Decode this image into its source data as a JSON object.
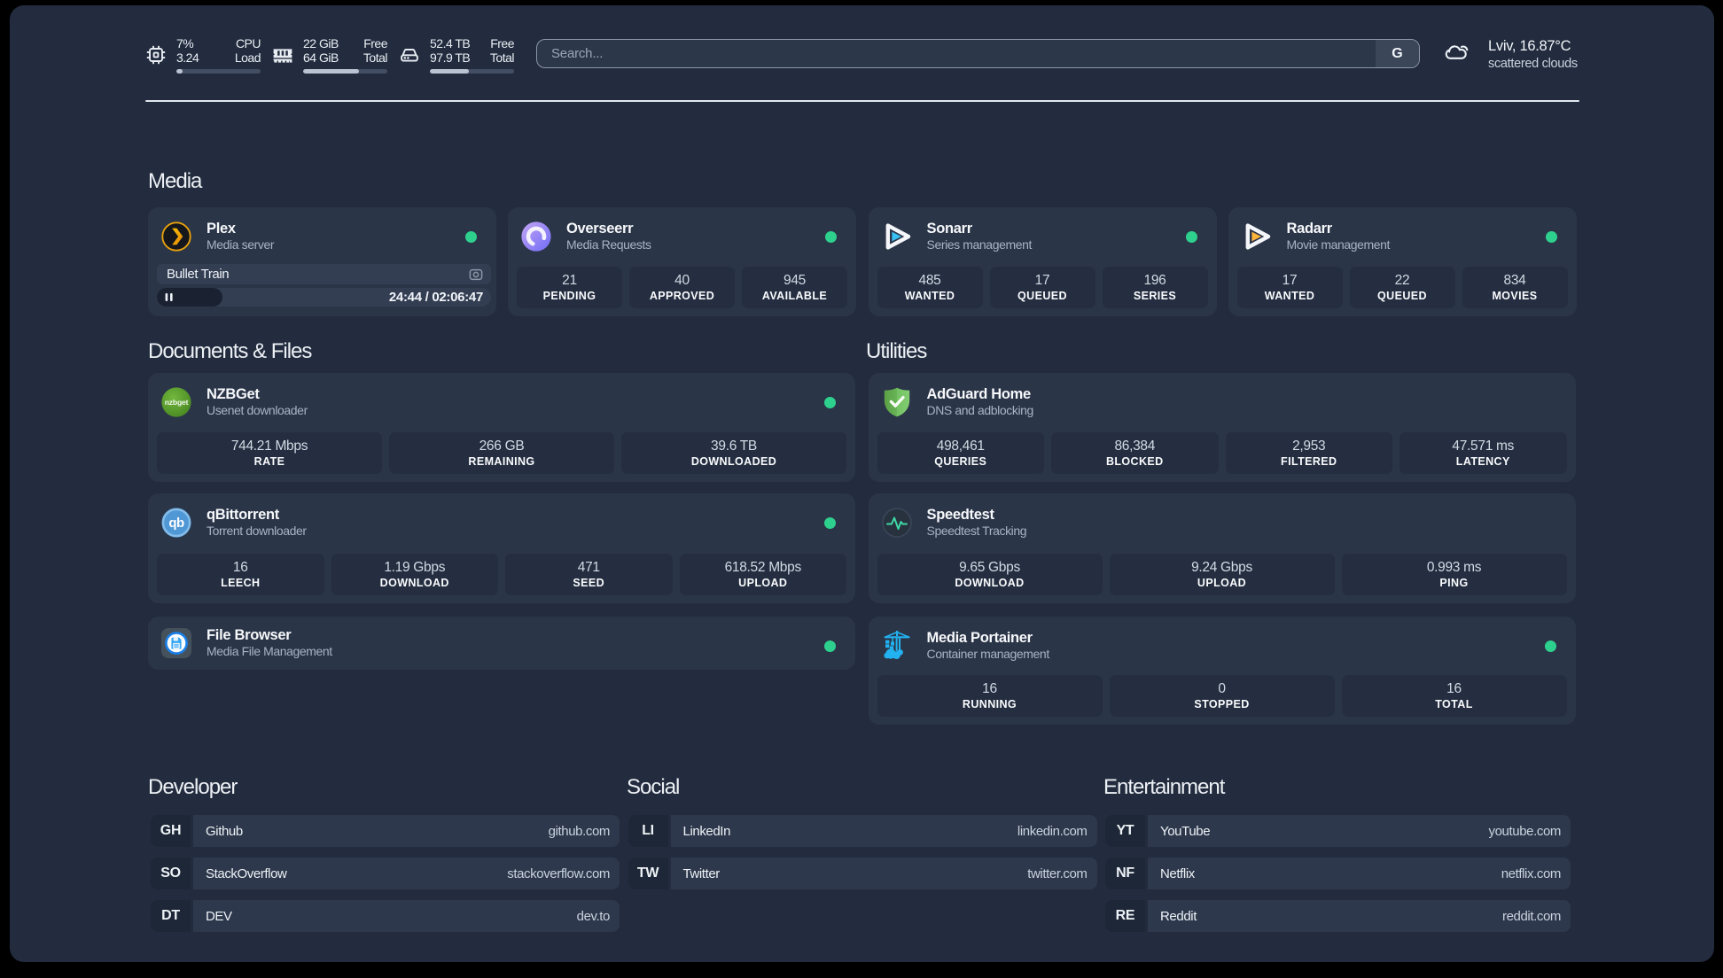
{
  "app": {
    "background": "#000000",
    "panel_bg": "#222c3e",
    "card_bg": "#2b3548",
    "tile_bg": "#242e40",
    "status_green": "#2fd593"
  },
  "header": {
    "resources": [
      {
        "icon": "cpu-icon",
        "rows": [
          {
            "value": "7%",
            "label": "CPU"
          },
          {
            "value": "3.24",
            "label": "Load"
          }
        ],
        "percent": 7
      },
      {
        "icon": "memory-icon",
        "rows": [
          {
            "value": "22 GiB",
            "label": "Free"
          },
          {
            "value": "64 GiB",
            "label": "Total"
          }
        ],
        "percent": 66
      },
      {
        "icon": "disk-icon",
        "rows": [
          {
            "value": "52.4 TB",
            "label": "Free"
          },
          {
            "value": "97.9 TB",
            "label": "Total"
          }
        ],
        "percent": 46
      }
    ],
    "search": {
      "placeholder": "Search...",
      "provider_label": "G"
    },
    "weather": {
      "location": "Lviv, 16.87°C",
      "condition": "scattered clouds"
    }
  },
  "sections": {
    "media": {
      "title": "Media",
      "cards": [
        {
          "icon": "plex-icon",
          "title": "Plex",
          "subtitle": "Media server",
          "online": true,
          "player": {
            "track": "Bullet Train",
            "time": "24:44 / 02:06:47",
            "progress_percent": 19.5
          }
        },
        {
          "icon": "overseerr-icon",
          "title": "Overseerr",
          "subtitle": "Media Requests",
          "online": true,
          "stats": [
            {
              "value": "21",
              "label": "PENDING"
            },
            {
              "value": "40",
              "label": "APPROVED"
            },
            {
              "value": "945",
              "label": "AVAILABLE"
            }
          ]
        },
        {
          "icon": "sonarr-icon",
          "title": "Sonarr",
          "subtitle": "Series management",
          "online": true,
          "stats": [
            {
              "value": "485",
              "label": "WANTED"
            },
            {
              "value": "17",
              "label": "QUEUED"
            },
            {
              "value": "196",
              "label": "SERIES"
            }
          ]
        },
        {
          "icon": "radarr-icon",
          "title": "Radarr",
          "subtitle": "Movie management",
          "online": true,
          "stats": [
            {
              "value": "17",
              "label": "WANTED"
            },
            {
              "value": "22",
              "label": "QUEUED"
            },
            {
              "value": "834",
              "label": "MOVIES"
            }
          ]
        }
      ]
    },
    "documents": {
      "title": "Documents & Files",
      "cards": [
        {
          "icon": "nzbget-icon",
          "title": "NZBGet",
          "subtitle": "Usenet downloader",
          "online": true,
          "stats": [
            {
              "value": "744.21 Mbps",
              "label": "RATE"
            },
            {
              "value": "266 GB",
              "label": "REMAINING"
            },
            {
              "value": "39.6 TB",
              "label": "DOWNLOADED"
            }
          ]
        },
        {
          "icon": "qbittorrent-icon",
          "title": "qBittorrent",
          "subtitle": "Torrent downloader",
          "online": true,
          "stats": [
            {
              "value": "16",
              "label": "LEECH"
            },
            {
              "value": "1.19 Gbps",
              "label": "DOWNLOAD"
            },
            {
              "value": "471",
              "label": "SEED"
            },
            {
              "value": "618.52 Mbps",
              "label": "UPLOAD"
            }
          ]
        },
        {
          "icon": "filebrowser-icon",
          "title": "File Browser",
          "subtitle": "Media File Management",
          "online": true,
          "stats": []
        }
      ]
    },
    "utilities": {
      "title": "Utilities",
      "cards": [
        {
          "icon": "adguard-icon",
          "title": "AdGuard Home",
          "subtitle": "DNS and adblocking",
          "online": false,
          "stats": [
            {
              "value": "498,461",
              "label": "QUERIES"
            },
            {
              "value": "86,384",
              "label": "BLOCKED"
            },
            {
              "value": "2,953",
              "label": "FILTERED"
            },
            {
              "value": "47.571 ms",
              "label": "LATENCY"
            }
          ]
        },
        {
          "icon": "speedtest-icon",
          "title": "Speedtest",
          "subtitle": "Speedtest Tracking",
          "online": false,
          "stats": [
            {
              "value": "9.65 Gbps",
              "label": "DOWNLOAD"
            },
            {
              "value": "9.24 Gbps",
              "label": "UPLOAD"
            },
            {
              "value": "0.993 ms",
              "label": "PING"
            }
          ]
        },
        {
          "icon": "portainer-icon",
          "title": "Media Portainer",
          "subtitle": "Container management",
          "online": true,
          "stats": [
            {
              "value": "16",
              "label": "RUNNING"
            },
            {
              "value": "0",
              "label": "STOPPED"
            },
            {
              "value": "16",
              "label": "TOTAL"
            }
          ]
        }
      ]
    },
    "developer": {
      "title": "Developer",
      "bookmarks": [
        {
          "abbr": "GH",
          "name": "Github",
          "url": "github.com"
        },
        {
          "abbr": "SO",
          "name": "StackOverflow",
          "url": "stackoverflow.com"
        },
        {
          "abbr": "DT",
          "name": "DEV",
          "url": "dev.to"
        }
      ]
    },
    "social": {
      "title": "Social",
      "bookmarks": [
        {
          "abbr": "LI",
          "name": "LinkedIn",
          "url": "linkedin.com"
        },
        {
          "abbr": "TW",
          "name": "Twitter",
          "url": "twitter.com"
        }
      ]
    },
    "entertainment": {
      "title": "Entertainment",
      "bookmarks": [
        {
          "abbr": "YT",
          "name": "YouTube",
          "url": "youtube.com"
        },
        {
          "abbr": "NF",
          "name": "Netflix",
          "url": "netflix.com"
        },
        {
          "abbr": "RE",
          "name": "Reddit",
          "url": "reddit.com"
        }
      ]
    }
  }
}
